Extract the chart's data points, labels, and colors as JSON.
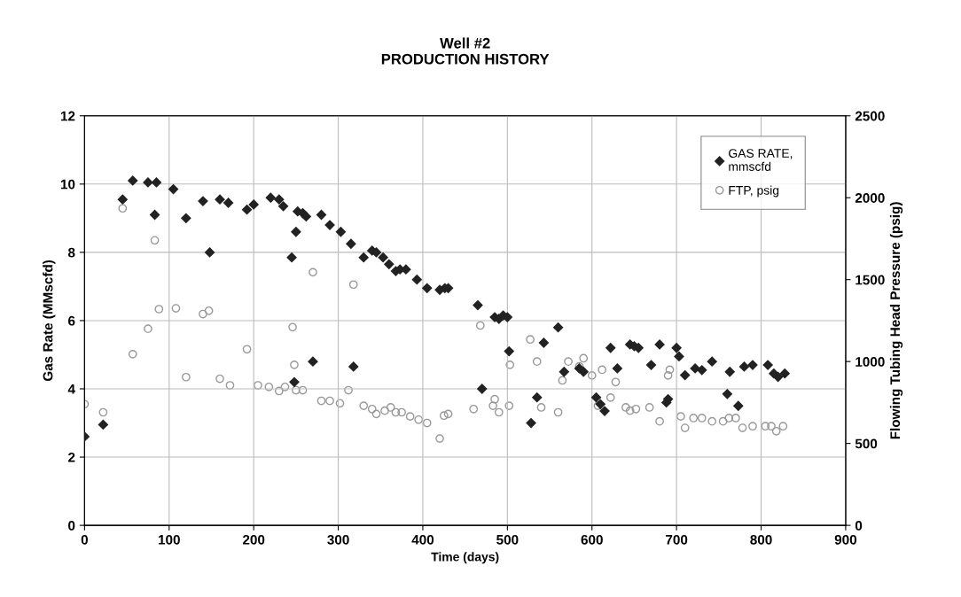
{
  "chart_data": {
    "type": "scatter",
    "title": "Well #2\nPRODUCTION HISTORY",
    "xlabel": "Time (days)",
    "ylabel": "Gas Rate (MMscfd)",
    "y2label": "Flowing Tubing Head Pressure (psig)",
    "xlim": [
      0,
      900
    ],
    "xticks": [
      0,
      100,
      200,
      300,
      400,
      500,
      600,
      700,
      800,
      900
    ],
    "ylim": [
      0,
      12
    ],
    "yticks": [
      0,
      2,
      4,
      6,
      8,
      10,
      12
    ],
    "y2lim": [
      0,
      2500
    ],
    "y2ticks": [
      0,
      500,
      1000,
      1500,
      2000,
      2500
    ],
    "grid": true,
    "legend": "top right",
    "series": [
      {
        "name": "GAS RATE,\nmmscfd",
        "color": "#222222",
        "marker": "diamond",
        "x": [
          0,
          22,
          45,
          57,
          75,
          83,
          85,
          105,
          120,
          140,
          148,
          160,
          170,
          192,
          200,
          220,
          230,
          235,
          245,
          248,
          250,
          252,
          258,
          262,
          270,
          280,
          290,
          303,
          315,
          318,
          330,
          340,
          345,
          353,
          360,
          368,
          373,
          380,
          393,
          405,
          420,
          426,
          430,
          465,
          470,
          485,
          490,
          495,
          500,
          502,
          528,
          535,
          543,
          560,
          567,
          585,
          590,
          605,
          610,
          615,
          622,
          630,
          645,
          650,
          655,
          670,
          680,
          688,
          690,
          700,
          703,
          710,
          722,
          730,
          742,
          760,
          763,
          773,
          780,
          790,
          808,
          815,
          820,
          828
        ],
        "values": [
          2.6,
          2.95,
          9.55,
          10.1,
          10.05,
          9.1,
          10.05,
          9.85,
          9.0,
          9.5,
          8.0,
          9.55,
          9.45,
          9.25,
          9.4,
          9.6,
          9.55,
          9.35,
          7.85,
          4.2,
          8.6,
          9.2,
          9.15,
          9.05,
          4.8,
          9.1,
          8.8,
          8.6,
          8.25,
          4.65,
          7.85,
          8.05,
          8.0,
          7.85,
          7.65,
          7.45,
          7.5,
          7.5,
          7.2,
          6.95,
          6.9,
          6.95,
          6.95,
          6.45,
          4.0,
          6.1,
          6.05,
          6.15,
          6.1,
          5.1,
          3.0,
          3.75,
          5.35,
          5.8,
          4.5,
          4.6,
          4.5,
          3.75,
          3.55,
          3.35,
          5.2,
          4.6,
          5.3,
          5.25,
          5.2,
          4.7,
          5.3,
          3.6,
          3.7,
          5.2,
          4.95,
          4.4,
          4.6,
          4.55,
          4.8,
          3.85,
          4.5,
          3.5,
          4.65,
          4.7,
          4.7,
          4.45,
          4.35,
          4.45
        ]
      },
      {
        "name": "FTP, psig",
        "color": "#999999",
        "marker": "circle",
        "axis": "y2",
        "x": [
          0,
          22,
          45,
          57,
          75,
          83,
          88,
          108,
          120,
          140,
          147,
          160,
          172,
          192,
          205,
          218,
          230,
          237,
          246,
          248,
          250,
          258,
          270,
          280,
          290,
          302,
          312,
          318,
          330,
          340,
          345,
          355,
          362,
          368,
          375,
          385,
          395,
          405,
          420,
          425,
          430,
          460,
          468,
          483,
          485,
          490,
          502,
          503,
          527,
          535,
          540,
          560,
          565,
          572,
          585,
          590,
          600,
          607,
          612,
          622,
          628,
          640,
          645,
          652,
          668,
          680,
          690,
          692,
          705,
          710,
          720,
          730,
          742,
          755,
          762,
          770,
          778,
          790,
          805,
          812,
          818,
          826
        ],
        "values": [
          740,
          690,
          1935,
          1045,
          1200,
          1740,
          1320,
          1325,
          905,
          1290,
          1310,
          895,
          855,
          1075,
          855,
          845,
          820,
          845,
          1210,
          980,
          825,
          825,
          1545,
          760,
          760,
          745,
          825,
          1470,
          730,
          710,
          680,
          700,
          720,
          690,
          690,
          665,
          645,
          625,
          530,
          670,
          680,
          710,
          1220,
          730,
          770,
          690,
          730,
          980,
          1135,
          1000,
          720,
          690,
          885,
          1000,
          970,
          1020,
          915,
          730,
          950,
          780,
          875,
          720,
          700,
          710,
          720,
          635,
          915,
          950,
          665,
          595,
          655,
          655,
          635,
          635,
          655,
          655,
          595,
          605,
          605,
          605,
          575,
          605
        ]
      }
    ]
  }
}
